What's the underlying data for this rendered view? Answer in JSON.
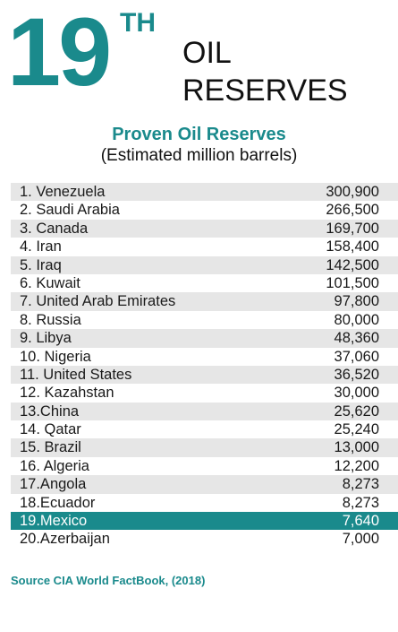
{
  "colors": {
    "accent": "#1a8a8c",
    "alt_row": "#e6e6e6",
    "text": "#222222",
    "highlight_text": "#ffffff"
  },
  "header": {
    "rank_number": "19",
    "rank_suffix": "TH",
    "title_line1": "OIL",
    "title_line2": "RESERVES"
  },
  "chart_data": {
    "type": "table",
    "title": "Proven Oil Reserves",
    "subtitle": "(Estimated million barrels)",
    "highlight_index": 18,
    "rows": [
      {
        "label": "1.  Venezuela",
        "country": "Venezuela",
        "value": 300900,
        "display": "300,900"
      },
      {
        "label": "2.  Saudi Arabia",
        "country": "Saudi Arabia",
        "value": 266500,
        "display": "266,500"
      },
      {
        "label": "3.  Canada",
        "country": "Canada",
        "value": 169700,
        "display": "169,700"
      },
      {
        "label": "4.  Iran",
        "country": "Iran",
        "value": 158400,
        "display": "158,400"
      },
      {
        "label": "5.  Iraq",
        "country": "Iraq",
        "value": 142500,
        "display": "142,500"
      },
      {
        "label": "6.  Kuwait",
        "country": "Kuwait",
        "value": 101500,
        "display": "101,500"
      },
      {
        "label": "7.  United Arab Emirates",
        "country": "United Arab Emirates",
        "value": 97800,
        "display": "97,800"
      },
      {
        "label": "8.  Russia",
        "country": "Russia",
        "value": 80000,
        "display": "80,000"
      },
      {
        "label": "9.  Libya",
        "country": "Libya",
        "value": 48360,
        "display": "48,360"
      },
      {
        "label": "10. Nigeria",
        "country": "Nigeria",
        "value": 37060,
        "display": "37,060"
      },
      {
        "label": "11. United States",
        "country": "United States",
        "value": 36520,
        "display": "36,520"
      },
      {
        "label": "12. Kazahstan",
        "country": "Kazahstan",
        "value": 30000,
        "display": "30,000"
      },
      {
        "label": "13.China",
        "country": "China",
        "value": 25620,
        "display": "25,620"
      },
      {
        "label": "14. Qatar",
        "country": "Qatar",
        "value": 25240,
        "display": "25,240"
      },
      {
        "label": "15. Brazil",
        "country": "Brazil",
        "value": 13000,
        "display": "13,000"
      },
      {
        "label": "16. Algeria",
        "country": "Algeria",
        "value": 12200,
        "display": "12,200"
      },
      {
        "label": "17.Angola",
        "country": "Angola",
        "value": 8273,
        "display": "8,273"
      },
      {
        "label": "18.Ecuador",
        "country": "Ecuador",
        "value": 8273,
        "display": "8,273"
      },
      {
        "label": "19.Mexico",
        "country": "Mexico",
        "value": 7640,
        "display": "7,640"
      },
      {
        "label": "20.Azerbaijan",
        "country": "Azerbaijan",
        "value": 7000,
        "display": "7,000"
      }
    ]
  },
  "source": "Source CIA World FactBook, (2018)"
}
